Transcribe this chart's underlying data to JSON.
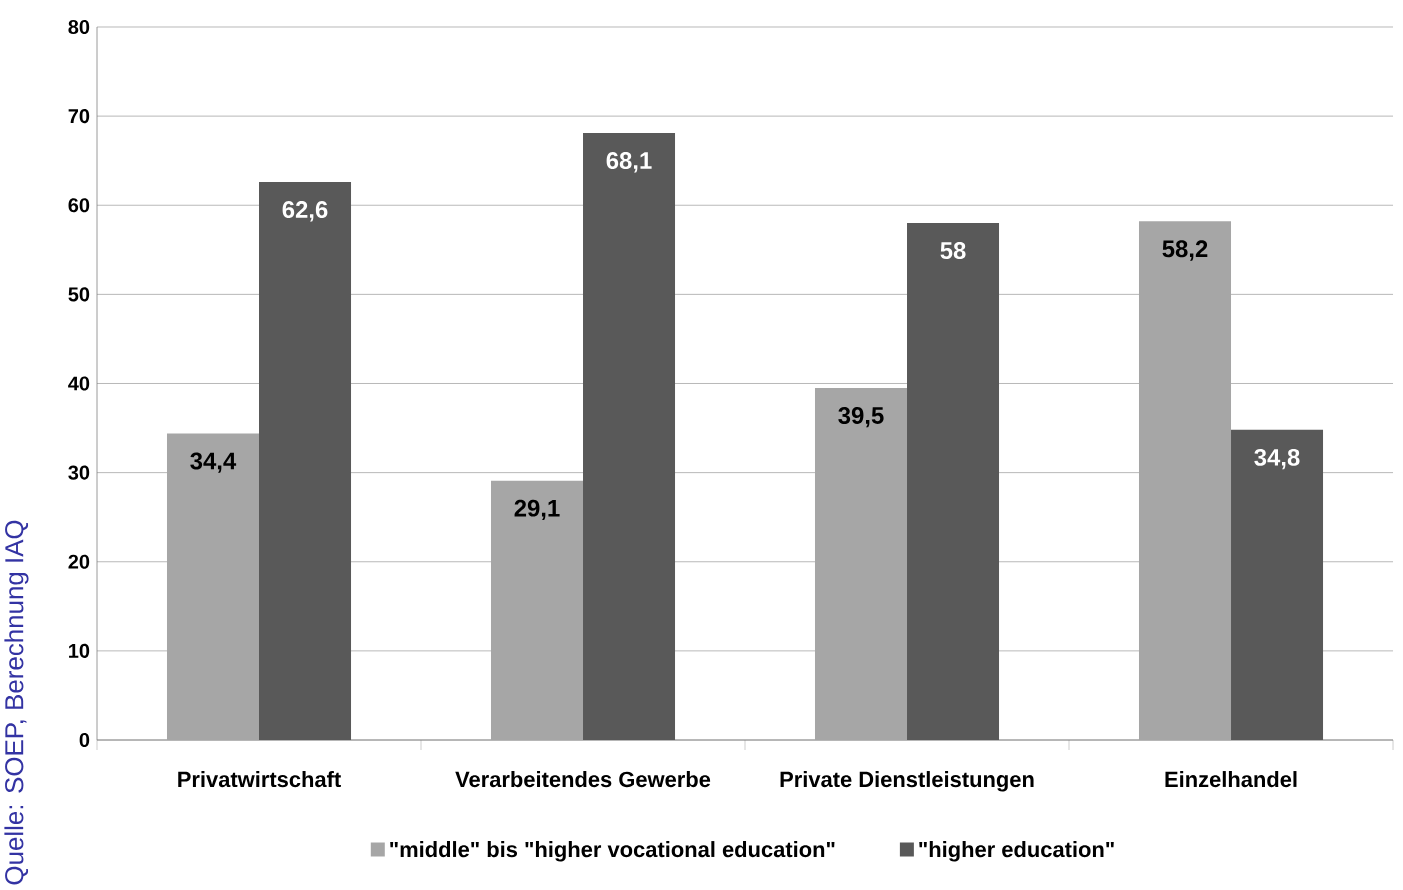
{
  "chart_data": {
    "type": "bar",
    "categories": [
      "Privatwirtschaft",
      "Verarbeitendes Gewerbe",
      "Private Dienstleistungen",
      "Einzelhandel"
    ],
    "series": [
      {
        "name": "\"middle\" bis \"higher vocational education\"",
        "color": "#a6a6a6",
        "values": [
          34.4,
          29.1,
          39.5,
          58.2
        ],
        "value_labels": [
          "34,4",
          "29,1",
          "39,5",
          "58,2"
        ]
      },
      {
        "name": "\"higher education\"",
        "color": "#595959",
        "values": [
          62.6,
          68.1,
          58,
          34.8
        ],
        "value_labels": [
          "62,6",
          "68,1",
          "58",
          "34,8"
        ]
      }
    ],
    "ylim": [
      0,
      80
    ],
    "yticks": [
      0,
      10,
      20,
      30,
      40,
      50,
      60,
      70,
      80
    ],
    "grid": "y",
    "legend": "bottom",
    "annotations": [
      "Quelle: SOEP, Berechnung IAQ"
    ]
  }
}
